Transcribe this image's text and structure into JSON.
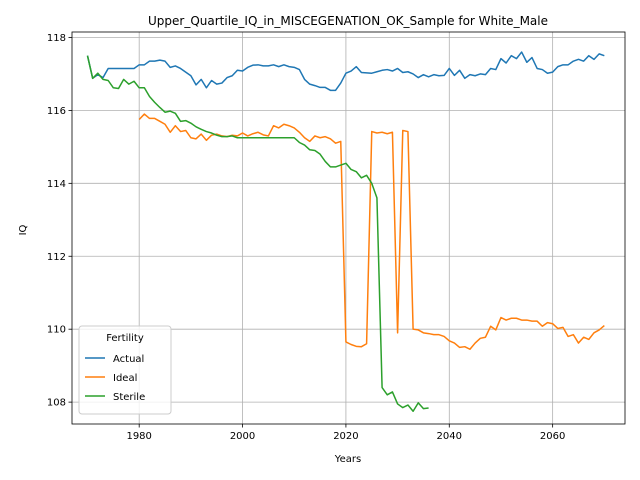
{
  "chart_data": {
    "type": "line",
    "title": "Upper_Quartile_IQ_in_MISCEGENATION_OK_Sample for White_Male",
    "xlabel": "Years",
    "ylabel": "IQ",
    "xlim": [
      1967,
      2074
    ],
    "ylim": [
      107.4,
      118.15
    ],
    "xticks": [
      1980,
      2000,
      2020,
      2040,
      2060
    ],
    "yticks": [
      108,
      110,
      112,
      114,
      116,
      118
    ],
    "grid": true,
    "legend": {
      "title": "Fertility",
      "placement": "lower-left"
    },
    "series": [
      {
        "name": "Actual",
        "color": "#1f77b4",
        "x": [
          1970,
          1971,
          1972,
          1973,
          1974,
          1975,
          1976,
          1977,
          1978,
          1979,
          1980,
          1981,
          1982,
          1983,
          1984,
          1985,
          1986,
          1987,
          1988,
          1989,
          1990,
          1991,
          1992,
          1993,
          1994,
          1995,
          1996,
          1997,
          1998,
          1999,
          2000,
          2001,
          2002,
          2003,
          2004,
          2005,
          2006,
          2007,
          2008,
          2009,
          2010,
          2011,
          2012,
          2013,
          2014,
          2015,
          2016,
          2017,
          2018,
          2019,
          2020,
          2021,
          2022,
          2023,
          2024,
          2025,
          2026,
          2027,
          2028,
          2029,
          2030,
          2031,
          2032,
          2033,
          2034,
          2035,
          2036,
          2037,
          2038,
          2039,
          2040,
          2041,
          2042,
          2043,
          2044,
          2045,
          2046,
          2047,
          2048,
          2049,
          2050,
          2051,
          2052,
          2053,
          2054,
          2055,
          2056,
          2057,
          2058,
          2059,
          2060,
          2061,
          2062,
          2063,
          2064,
          2065,
          2066,
          2067,
          2068,
          2069,
          2070
        ],
        "y": [
          117.5,
          116.88,
          116.98,
          116.9,
          117.15,
          117.15,
          117.15,
          117.15,
          117.15,
          117.15,
          117.25,
          117.25,
          117.35,
          117.35,
          117.38,
          117.35,
          117.18,
          117.22,
          117.15,
          117.05,
          116.95,
          116.7,
          116.85,
          116.62,
          116.82,
          116.72,
          116.75,
          116.9,
          116.95,
          117.1,
          117.08,
          117.18,
          117.24,
          117.25,
          117.22,
          117.22,
          117.25,
          117.2,
          117.25,
          117.2,
          117.18,
          117.12,
          116.85,
          116.72,
          116.68,
          116.63,
          116.63,
          116.55,
          116.55,
          116.75,
          117.02,
          117.08,
          117.2,
          117.04,
          117.03,
          117.02,
          117.06,
          117.1,
          117.12,
          117.08,
          117.15,
          117.04,
          117.06,
          117.0,
          116.9,
          116.98,
          116.92,
          116.98,
          116.95,
          116.96,
          117.15,
          116.96,
          117.1,
          116.88,
          116.98,
          116.95,
          117.0,
          116.98,
          117.15,
          117.12,
          117.42,
          117.3,
          117.5,
          117.42,
          117.6,
          117.32,
          117.45,
          117.15,
          117.12,
          117.02,
          117.05,
          117.2,
          117.25,
          117.25,
          117.35,
          117.4,
          117.35,
          117.5,
          117.4,
          117.55,
          117.5
        ]
      },
      {
        "name": "Ideal",
        "color": "#ff7f0e",
        "x": [
          1980,
          1981,
          1982,
          1983,
          1984,
          1985,
          1986,
          1987,
          1988,
          1989,
          1990,
          1991,
          1992,
          1993,
          1994,
          1995,
          1996,
          1997,
          1998,
          1999,
          2000,
          2001,
          2002,
          2003,
          2004,
          2005,
          2006,
          2007,
          2008,
          2009,
          2010,
          2011,
          2012,
          2013,
          2014,
          2015,
          2016,
          2017,
          2018,
          2019,
          2020,
          2021,
          2022,
          2023,
          2024,
          2025,
          2026,
          2027,
          2028,
          2029,
          2030,
          2031,
          2032,
          2033,
          2034,
          2035,
          2036,
          2037,
          2038,
          2039,
          2040,
          2041,
          2042,
          2043,
          2044,
          2045,
          2046,
          2047,
          2048,
          2049,
          2050,
          2051,
          2052,
          2053,
          2054,
          2055,
          2056,
          2057,
          2058,
          2059,
          2060,
          2061,
          2062,
          2063,
          2064,
          2065,
          2066,
          2067,
          2068,
          2069,
          2070
        ],
        "y": [
          115.75,
          115.9,
          115.78,
          115.78,
          115.7,
          115.62,
          115.4,
          115.58,
          115.42,
          115.45,
          115.25,
          115.22,
          115.35,
          115.18,
          115.32,
          115.35,
          115.3,
          115.28,
          115.32,
          115.3,
          115.38,
          115.3,
          115.36,
          115.4,
          115.33,
          115.3,
          115.58,
          115.52,
          115.62,
          115.58,
          115.52,
          115.4,
          115.25,
          115.15,
          115.3,
          115.25,
          115.28,
          115.22,
          115.1,
          115.15,
          109.65,
          109.58,
          109.53,
          109.52,
          109.6,
          115.42,
          115.38,
          115.4,
          115.36,
          115.4,
          109.9,
          115.45,
          115.42,
          110.0,
          109.98,
          109.9,
          109.88,
          109.85,
          109.85,
          109.8,
          109.68,
          109.62,
          109.5,
          109.52,
          109.45,
          109.62,
          109.75,
          109.78,
          110.08,
          109.98,
          110.32,
          110.25,
          110.3,
          110.3,
          110.25,
          110.25,
          110.22,
          110.22,
          110.08,
          110.18,
          110.15,
          110.02,
          110.05,
          109.8,
          109.85,
          109.62,
          109.78,
          109.72,
          109.9,
          109.98,
          110.1
        ]
      },
      {
        "name": "Sterile",
        "color": "#2ca02c",
        "x": [
          1970,
          1971,
          1972,
          1973,
          1974,
          1975,
          1976,
          1977,
          1978,
          1979,
          1980,
          1981,
          1982,
          1983,
          1984,
          1985,
          1986,
          1987,
          1988,
          1989,
          1990,
          1991,
          1992,
          1993,
          1994,
          1995,
          1996,
          1997,
          1998,
          1999,
          2000,
          2001,
          2002,
          2003,
          2004,
          2005,
          2006,
          2007,
          2008,
          2009,
          2010,
          2011,
          2012,
          2013,
          2014,
          2015,
          2016,
          2017,
          2018,
          2019,
          2020,
          2021,
          2022,
          2023,
          2024,
          2025,
          2026,
          2027,
          2028,
          2029,
          2030,
          2031,
          2032,
          2033,
          2034,
          2035,
          2036
        ],
        "y": [
          117.5,
          116.88,
          117.02,
          116.85,
          116.82,
          116.62,
          116.6,
          116.85,
          116.72,
          116.8,
          116.62,
          116.62,
          116.38,
          116.22,
          116.08,
          115.95,
          115.98,
          115.92,
          115.7,
          115.72,
          115.65,
          115.55,
          115.48,
          115.42,
          115.38,
          115.32,
          115.28,
          115.28,
          115.3,
          115.25,
          115.25,
          115.25,
          115.25,
          115.25,
          115.25,
          115.25,
          115.25,
          115.25,
          115.25,
          115.25,
          115.25,
          115.12,
          115.05,
          114.92,
          114.9,
          114.8,
          114.6,
          114.45,
          114.45,
          114.5,
          114.55,
          114.38,
          114.32,
          114.15,
          114.22,
          114.0,
          113.6,
          108.4,
          108.2,
          108.28,
          107.95,
          107.85,
          107.92,
          107.75,
          107.98,
          107.82,
          107.84
        ]
      }
    ]
  }
}
